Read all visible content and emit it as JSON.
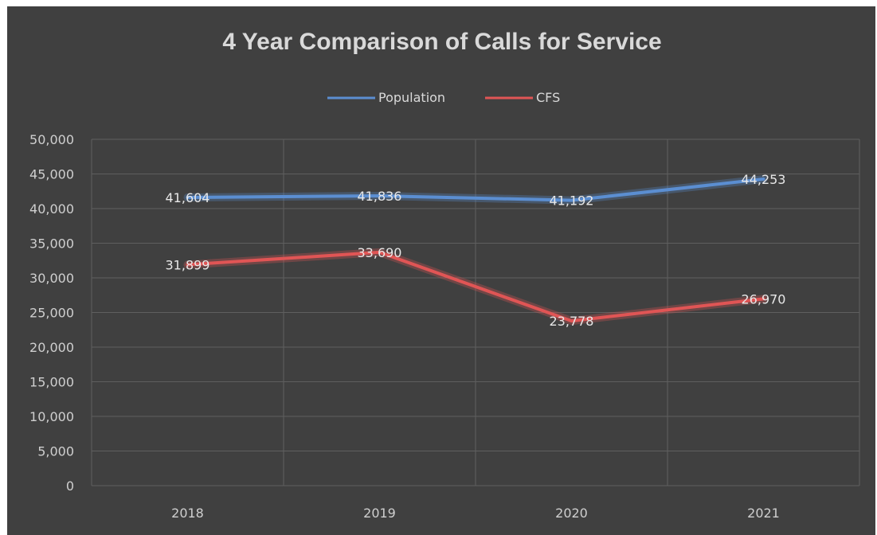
{
  "chart_data": {
    "type": "line",
    "title": "4 Year Comparison of Calls for Service",
    "categories": [
      "2018",
      "2019",
      "2020",
      "2021"
    ],
    "series": [
      {
        "name": "Population",
        "values": [
          41604,
          41836,
          41192,
          44253
        ],
        "labels": [
          "41,604",
          "41,836",
          "41,192",
          "44,253"
        ],
        "color": "#5b8ed1"
      },
      {
        "name": "CFS",
        "values": [
          31899,
          33690,
          23778,
          26970
        ],
        "labels": [
          "31,899",
          "33,690",
          "23,778",
          "26,970"
        ],
        "color": "#e05555"
      }
    ],
    "ylim": [
      0,
      50000
    ],
    "yticks": [
      "0",
      "5,000",
      "10,000",
      "15,000",
      "20,000",
      "25,000",
      "30,000",
      "35,000",
      "40,000",
      "45,000",
      "50,000"
    ],
    "grid": true,
    "legend_position": "top"
  },
  "colors": {
    "background": "#404040",
    "grid": "#5f5f5f",
    "text": "#d9d9d9"
  }
}
